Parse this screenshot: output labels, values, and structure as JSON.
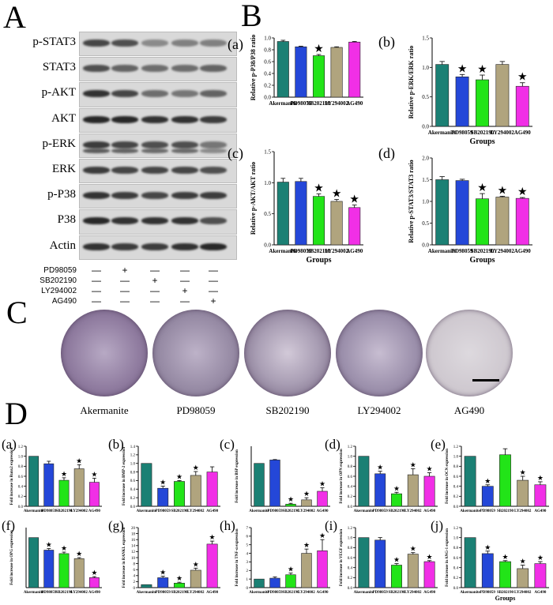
{
  "panels": {
    "A": "A",
    "B": "B",
    "C": "C",
    "D": "D"
  },
  "blot": {
    "labels": [
      "p-STAT3",
      "STAT3",
      "p-AKT",
      "AKT",
      "p-ERK",
      "ERK",
      "p-P38",
      "P38",
      "Actin"
    ],
    "treatments": [
      {
        "name": "PD98059",
        "signs": [
          "—",
          "+",
          "—",
          "—",
          "—"
        ]
      },
      {
        "name": "SB202190",
        "signs": [
          "—",
          "—",
          "+",
          "—",
          "—"
        ]
      },
      {
        "name": "LY294002",
        "signs": [
          "—",
          "—",
          "—",
          "+",
          "—"
        ]
      },
      {
        "name": "AG490",
        "signs": [
          "—",
          "—",
          "—",
          "—",
          "+"
        ]
      }
    ]
  },
  "dishes": {
    "labels": [
      "Akermanite",
      "PD98059",
      "SB202190",
      "LY294002",
      "AG490"
    ]
  },
  "chart_data": [
    {
      "id": "B-a",
      "letter": "(a)",
      "type": "bar",
      "categories": [
        "Akermanite",
        "PD98059",
        "SB202190",
        "LY294002",
        "AG490"
      ],
      "values": [
        0.94,
        0.85,
        0.7,
        0.84,
        0.93
      ],
      "errors": [
        0.02,
        0.01,
        0.02,
        0.01,
        0.01
      ],
      "stars": [
        false,
        false,
        true,
        false,
        false
      ],
      "ylabel": "Relative p-P38/P38 ratio",
      "xlabel": "",
      "ylim": [
        0,
        1.0
      ],
      "ticks": [
        "0.0",
        "0.2",
        "0.4",
        "0.6",
        "0.8",
        "1.0"
      ],
      "tickvals": [
        0,
        0.2,
        0.4,
        0.6,
        0.8,
        1.0
      ]
    },
    {
      "id": "B-b",
      "letter": "(b)",
      "type": "bar",
      "categories": [
        "Akermanite",
        "PD98059",
        "SB202190",
        "LY294002",
        "AG490"
      ],
      "values": [
        1.05,
        0.84,
        0.79,
        1.05,
        0.68
      ],
      "errors": [
        0.05,
        0.04,
        0.08,
        0.05,
        0.06
      ],
      "stars": [
        false,
        true,
        true,
        false,
        true
      ],
      "ylabel": "Relative p-ERK/ERK ratio",
      "xlabel": "Groups",
      "ylim": [
        0,
        1.5
      ],
      "ticks": [
        "0.0",
        "0.5",
        "1.0",
        "1.5"
      ],
      "tickvals": [
        0,
        0.5,
        1.0,
        1.5
      ]
    },
    {
      "id": "B-c",
      "letter": "(c)",
      "type": "bar",
      "categories": [
        "Akermanite",
        "PD98059",
        "SB202190",
        "LY294002",
        "AG490"
      ],
      "values": [
        1.01,
        1.02,
        0.78,
        0.7,
        0.6
      ],
      "errors": [
        0.06,
        0.05,
        0.04,
        0.03,
        0.04
      ],
      "stars": [
        false,
        false,
        true,
        true,
        true
      ],
      "ylabel": "Relative p-AKT/AKT ratio",
      "xlabel": "Groups",
      "ylim": [
        0,
        1.5
      ],
      "ticks": [
        "0.0",
        "0.5",
        "1.0",
        "1.5"
      ],
      "tickvals": [
        0,
        0.5,
        1.0,
        1.5
      ]
    },
    {
      "id": "B-d",
      "letter": "(d)",
      "type": "bar",
      "categories": [
        "Akermanite",
        "PD98059",
        "SB202190",
        "LY294002",
        "AG490"
      ],
      "values": [
        1.5,
        1.48,
        1.06,
        1.1,
        1.07
      ],
      "errors": [
        0.07,
        0.03,
        0.12,
        0.02,
        0.02
      ],
      "stars": [
        false,
        false,
        true,
        true,
        true
      ],
      "ylabel": "Relative p-STAT3/STAT3 ratio",
      "xlabel": "Groups",
      "ylim": [
        0,
        2.0
      ],
      "ticks": [
        "0.0",
        "0.5",
        "1.0",
        "1.5",
        "2.0"
      ],
      "tickvals": [
        0,
        0.5,
        1.0,
        1.5,
        2.0
      ]
    },
    {
      "id": "D-a",
      "letter": "(a)",
      "type": "bar",
      "categories": [
        "Akermanite",
        "PD98059",
        "SB202190",
        "LY294002",
        "AG490"
      ],
      "values": [
        1.0,
        0.85,
        0.52,
        0.75,
        0.48
      ],
      "errors": [
        0.0,
        0.05,
        0.05,
        0.08,
        0.08
      ],
      "stars": [
        false,
        false,
        true,
        true,
        true
      ],
      "ylabel": "Fold increase in Runx2 expression",
      "xlabel": "",
      "ylim": [
        0,
        1.2
      ],
      "ticks": [
        "0.0",
        "0.2",
        "0.4",
        "0.6",
        "0.8",
        "1.0",
        "1.2"
      ],
      "tickvals": [
        0,
        0.2,
        0.4,
        0.6,
        0.8,
        1.0,
        1.2
      ]
    },
    {
      "id": "D-b",
      "letter": "(b)",
      "type": "bar",
      "categories": [
        "Akermanite",
        "PD98059",
        "SB202190",
        "LY294002",
        "AG490"
      ],
      "values": [
        1.0,
        0.42,
        0.58,
        0.72,
        0.8
      ],
      "errors": [
        0.0,
        0.05,
        0.02,
        0.09,
        0.12
      ],
      "stars": [
        false,
        true,
        true,
        true,
        false
      ],
      "ylabel": "Fold increase in BMP-2 expression",
      "xlabel": "",
      "ylim": [
        0,
        1.4
      ],
      "ticks": [
        "0.0",
        "0.2",
        "0.4",
        "0.6",
        "0.8",
        "1.0",
        "1.2",
        "1.4"
      ],
      "tickvals": [
        0,
        0.2,
        0.4,
        0.6,
        0.8,
        1.0,
        1.2,
        1.4
      ]
    },
    {
      "id": "D-c",
      "letter": "(c)",
      "type": "bar",
      "categories": [
        "Akermanite",
        "PD98059",
        "SB202190",
        "LY294002",
        "AG490"
      ],
      "values": [
        1.0,
        1.08,
        0.05,
        0.15,
        0.35
      ],
      "errors": [
        0.0,
        0.01,
        0.02,
        0.05,
        0.08
      ],
      "stars": [
        false,
        false,
        true,
        true,
        true
      ],
      "ylabel": "Fold increase in BSP expression",
      "xlabel": "",
      "ylim": [
        0,
        1.4
      ],
      "ticks": [],
      "tickvals": []
    },
    {
      "id": "D-d",
      "letter": "(d)",
      "type": "bar",
      "categories": [
        "Akermanite",
        "PD98059",
        "SB202190",
        "LY294002",
        "AG490"
      ],
      "values": [
        1.0,
        0.65,
        0.25,
        0.63,
        0.6
      ],
      "errors": [
        0.0,
        0.05,
        0.03,
        0.12,
        0.07
      ],
      "stars": [
        false,
        true,
        true,
        true,
        true
      ],
      "ylabel": "Fold increase in OPN expression",
      "xlabel": "",
      "ylim": [
        0,
        1.2
      ],
      "ticks": [
        "0.0",
        "0.2",
        "0.4",
        "0.6",
        "0.8",
        "1.0",
        "1.2"
      ],
      "tickvals": [
        0,
        0.2,
        0.4,
        0.6,
        0.8,
        1.0,
        1.2
      ]
    },
    {
      "id": "D-e",
      "letter": "(e)",
      "type": "bar",
      "categories": [
        "Akermanite",
        "PD98059",
        "SB202190",
        "LY294002",
        "AG490"
      ],
      "values": [
        1.0,
        0.4,
        1.03,
        0.52,
        0.43
      ],
      "errors": [
        0.0,
        0.03,
        0.12,
        0.08,
        0.06
      ],
      "stars": [
        false,
        true,
        false,
        true,
        true
      ],
      "ylabel": "Fold increase in OCN expression",
      "xlabel": "",
      "ylim": [
        0,
        1.2
      ],
      "ticks": [
        "0.0",
        "0.2",
        "0.4",
        "0.6",
        "0.8",
        "1.0",
        "1.2"
      ],
      "tickvals": [
        0,
        0.2,
        0.4,
        0.6,
        0.8,
        1.0,
        1.2
      ]
    },
    {
      "id": "D-f",
      "letter": "(f)",
      "type": "bar",
      "categories": [
        "Akermanite",
        "PD98059",
        "SB202190",
        "LY294002",
        "AG490"
      ],
      "values": [
        1.0,
        0.75,
        0.68,
        0.58,
        0.2
      ],
      "errors": [
        0.0,
        0.03,
        0.03,
        0.02,
        0.02
      ],
      "stars": [
        false,
        true,
        true,
        true,
        true
      ],
      "ylabel": "Fold increase in OPG expression",
      "xlabel": "",
      "ylim": [
        0,
        1.2
      ],
      "ticks": [],
      "tickvals": []
    },
    {
      "id": "D-g",
      "letter": "(g)",
      "type": "bar",
      "categories": [
        "Akermanite",
        "PD98059",
        "SB202190",
        "LY294002",
        "AG490"
      ],
      "values": [
        1.0,
        3.3,
        1.5,
        5.8,
        14.5
      ],
      "errors": [
        0.0,
        0.5,
        0.3,
        0.7,
        1.0
      ],
      "stars": [
        false,
        true,
        true,
        true,
        true
      ],
      "ylabel": "Fold increase in RANKL expression",
      "xlabel": "",
      "ylim": [
        0,
        20
      ],
      "ticks": [
        "0",
        "2",
        "4",
        "6",
        "8",
        "10",
        "12",
        "14",
        "16",
        "18",
        "20"
      ],
      "tickvals": [
        0,
        2,
        4,
        6,
        8,
        10,
        12,
        14,
        16,
        18,
        20
      ]
    },
    {
      "id": "D-h",
      "letter": "(h)",
      "type": "bar",
      "categories": [
        "Akermanite",
        "PD98059",
        "SB202190",
        "LY294002",
        "AG490"
      ],
      "values": [
        1.0,
        1.1,
        1.5,
        4.0,
        4.3
      ],
      "errors": [
        0.0,
        0.15,
        0.2,
        0.5,
        1.3
      ],
      "stars": [
        false,
        false,
        true,
        true,
        true
      ],
      "ylabel": "Fold increase in TNF-α expression",
      "xlabel": "",
      "ylim": [
        0,
        7
      ],
      "ticks": [
        "0",
        "1",
        "2",
        "3",
        "4",
        "5",
        "6",
        "7"
      ],
      "tickvals": [
        0,
        1,
        2,
        3,
        4,
        5,
        6,
        7
      ]
    },
    {
      "id": "D-i",
      "letter": "(i)",
      "type": "bar",
      "categories": [
        "Akermanite",
        "PD98059",
        "SB202190",
        "LY294002",
        "AG490"
      ],
      "values": [
        1.0,
        0.95,
        0.45,
        0.67,
        0.52
      ],
      "errors": [
        0.0,
        0.05,
        0.03,
        0.03,
        0.02
      ],
      "stars": [
        false,
        false,
        true,
        true,
        true
      ],
      "ylabel": "Fold increase in VEGF expression",
      "xlabel": "",
      "ylim": [
        0,
        1.2
      ],
      "ticks": [
        "0.0",
        "0.2",
        "0.4",
        "0.6",
        "0.8",
        "1.0",
        "1.2"
      ],
      "tickvals": [
        0,
        0.2,
        0.4,
        0.6,
        0.8,
        1.0,
        1.2
      ]
    },
    {
      "id": "D-j",
      "letter": "(j)",
      "type": "bar",
      "categories": [
        "Akermanite",
        "PD98059",
        "SB202190",
        "LY294002",
        "AG490"
      ],
      "values": [
        1.0,
        0.68,
        0.52,
        0.38,
        0.48
      ],
      "errors": [
        0.0,
        0.05,
        0.02,
        0.07,
        0.04
      ],
      "stars": [
        false,
        true,
        true,
        true,
        true
      ],
      "ylabel": "Fold increase in ANG-1 expression",
      "xlabel": "Groups",
      "ylim": [
        0,
        1.2
      ],
      "ticks": [
        "0.0",
        "0.2",
        "0.4",
        "0.6",
        "0.8",
        "1.0",
        "1.2"
      ],
      "tickvals": [
        0,
        0.2,
        0.4,
        0.6,
        0.8,
        1.0,
        1.2
      ]
    }
  ],
  "colors": {
    "bars": [
      "#1b8074",
      "#2447d8",
      "#22e418",
      "#b0a47e",
      "#f12fe6"
    ]
  }
}
